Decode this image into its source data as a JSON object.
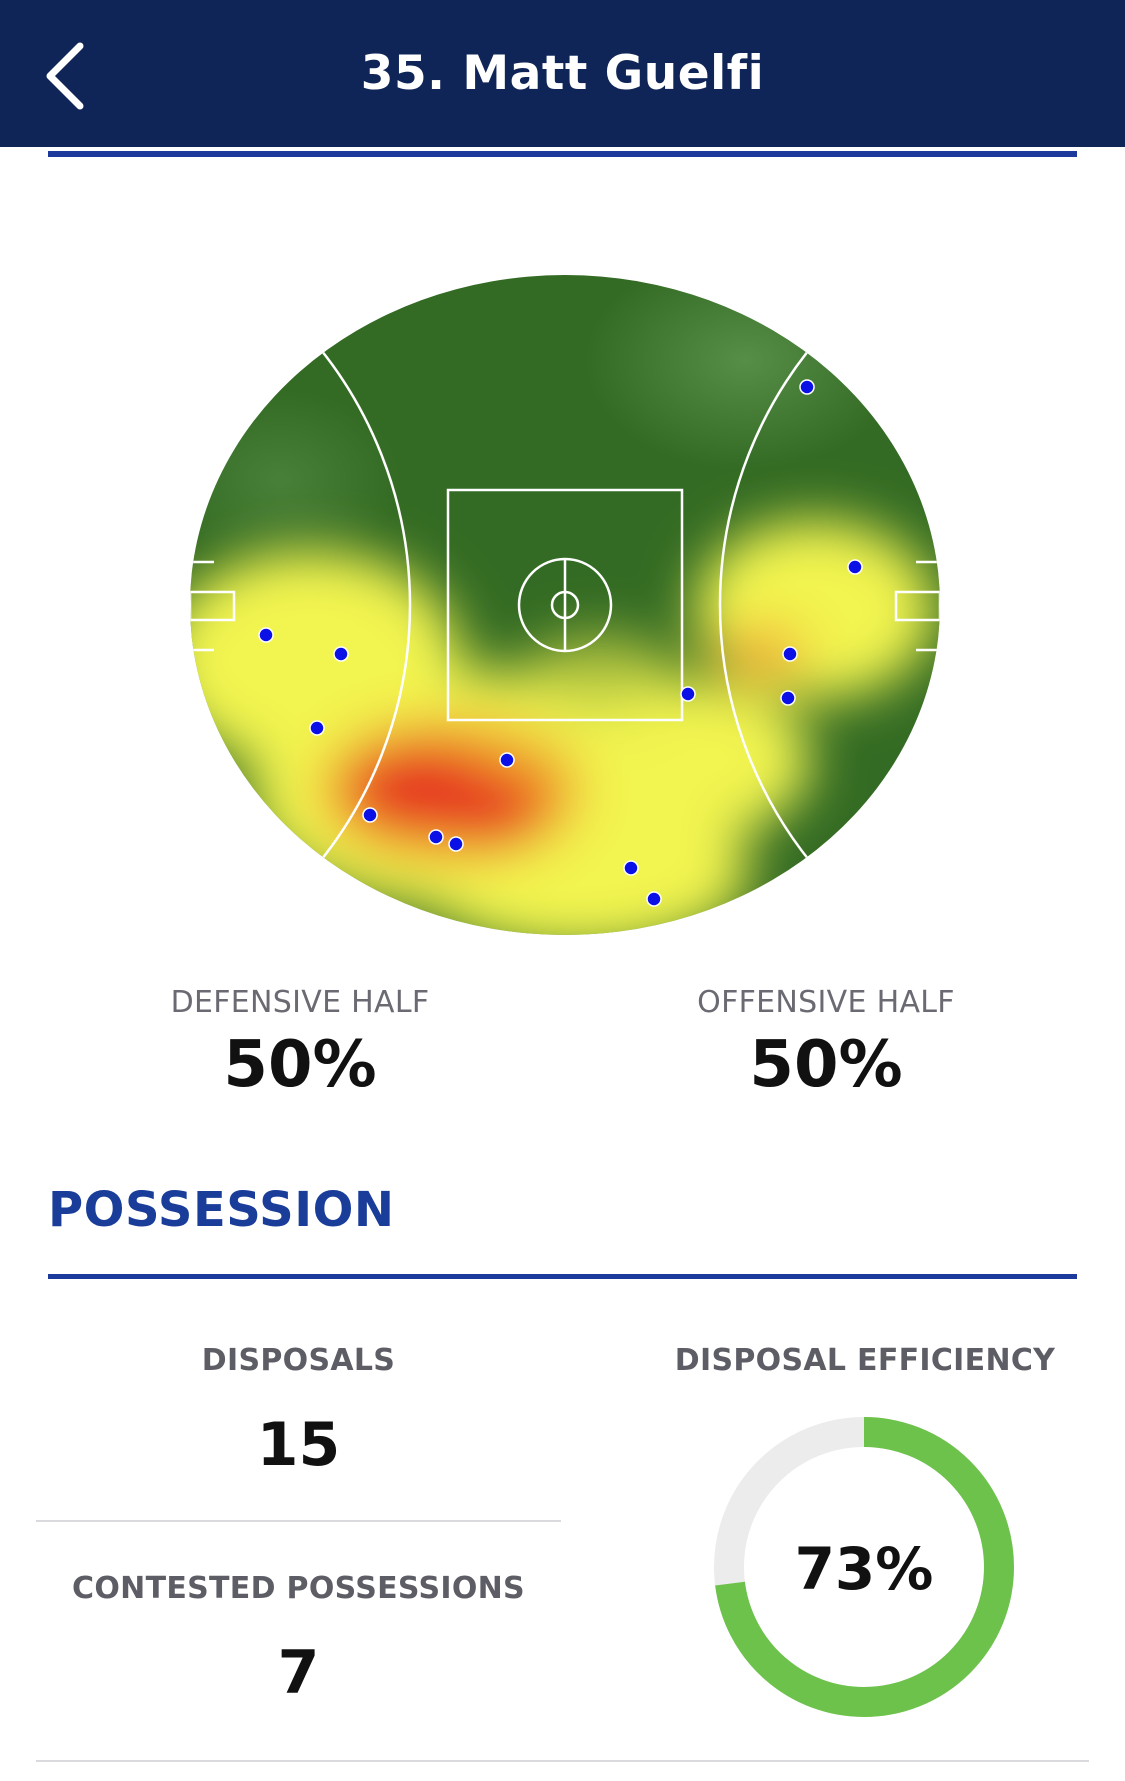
{
  "header": {
    "title": "35. Matt Guelfi",
    "back_icon": "chevron-left-icon"
  },
  "heatmap": {
    "colors": {
      "low": "#2f6b1f",
      "mid": "#f5f552",
      "high": "#e8341f",
      "marker": "#0a10e6"
    }
  },
  "halves": {
    "defensive_label": "DEFENSIVE HALF",
    "defensive_value": "50%",
    "offensive_label": "OFFENSIVE HALF",
    "offensive_value": "50%"
  },
  "possession": {
    "title": "POSSESSION",
    "disposals_label": "DISPOSALS",
    "disposals_value": "15",
    "contested_label": "CONTESTED POSSESSIONS",
    "contested_value": "7",
    "efficiency_label": "DISPOSAL EFFICIENCY",
    "efficiency_value": "73%",
    "efficiency_fraction": 0.73
  },
  "colors": {
    "header_bg": "#0f2457",
    "accent": "#1c3a9c",
    "donut_fill": "#6cc24a",
    "donut_track": "#ececec"
  }
}
